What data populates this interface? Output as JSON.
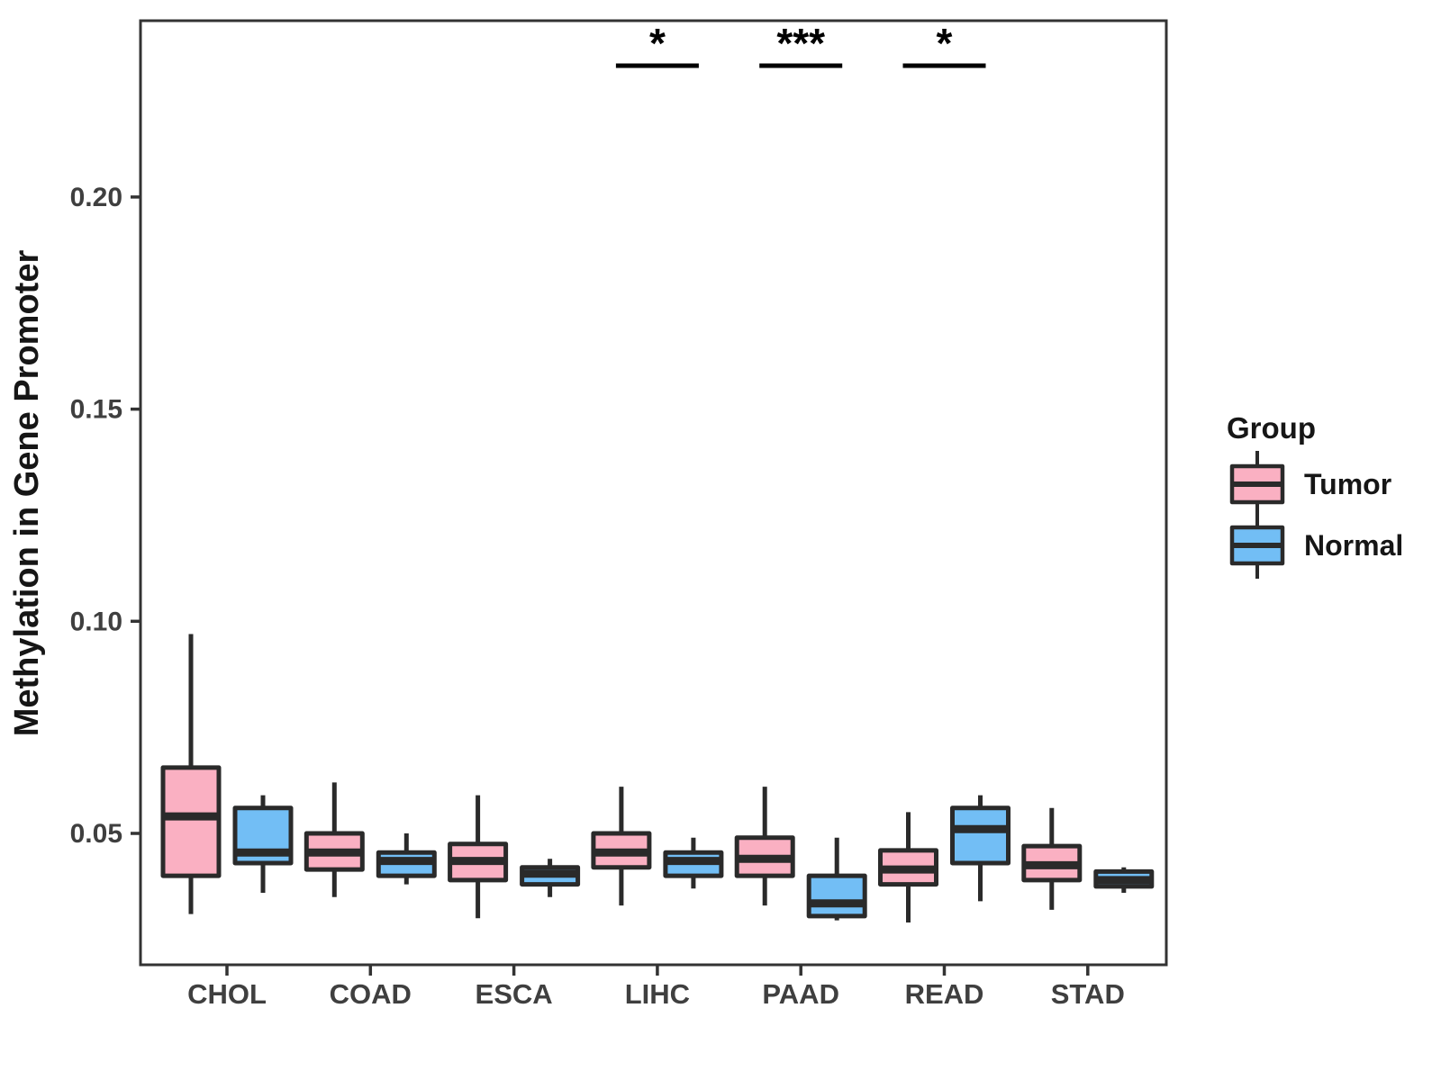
{
  "figure": {
    "background": "#FFFFFF",
    "y_axis_title": "Methylation in Gene Promoter",
    "legend": {
      "title": "Group",
      "items": [
        {
          "name": "tumor",
          "label": "Tumor",
          "color": "#FAB0C2"
        },
        {
          "name": "normal",
          "label": "Normal",
          "color": "#72BEF5"
        }
      ]
    }
  },
  "chart_data": {
    "type": "grouped_boxplot",
    "title": "",
    "xlabel": "",
    "ylabel": "Methylation in Gene Promoter",
    "categories": [
      "CHOL",
      "COAD",
      "ESCA",
      "LIHC",
      "PAAD",
      "READ",
      "STAD"
    ],
    "yticks": [
      0.05,
      0.1,
      0.15,
      0.2
    ],
    "ytick_labels": [
      "0.05",
      "0.10",
      "0.15",
      "0.20"
    ],
    "ylim": [
      0.019,
      0.2415
    ],
    "grid": "off",
    "legend_position": "right",
    "stroke_color": "#2A2A2A",
    "series": [
      {
        "name": "Tumor",
        "color": "#FAB0C2",
        "boxes": [
          {
            "category": "CHOL",
            "whisker_low": 0.031,
            "q1": 0.04,
            "median": 0.054,
            "q3": 0.0655,
            "whisker_high": 0.097
          },
          {
            "category": "COAD",
            "whisker_low": 0.035,
            "q1": 0.0415,
            "median": 0.0455,
            "q3": 0.05,
            "whisker_high": 0.062
          },
          {
            "category": "ESCA",
            "whisker_low": 0.03,
            "q1": 0.039,
            "median": 0.0435,
            "q3": 0.0475,
            "whisker_high": 0.059
          },
          {
            "category": "LIHC",
            "whisker_low": 0.033,
            "q1": 0.042,
            "median": 0.0455,
            "q3": 0.05,
            "whisker_high": 0.061
          },
          {
            "category": "PAAD",
            "whisker_low": 0.033,
            "q1": 0.04,
            "median": 0.044,
            "q3": 0.049,
            "whisker_high": 0.061
          },
          {
            "category": "READ",
            "whisker_low": 0.029,
            "q1": 0.038,
            "median": 0.0415,
            "q3": 0.046,
            "whisker_high": 0.055
          },
          {
            "category": "STAD",
            "whisker_low": 0.032,
            "q1": 0.039,
            "median": 0.0425,
            "q3": 0.047,
            "whisker_high": 0.056
          }
        ]
      },
      {
        "name": "Normal",
        "color": "#72BEF5",
        "boxes": [
          {
            "category": "CHOL",
            "whisker_low": 0.036,
            "q1": 0.043,
            "median": 0.0455,
            "q3": 0.056,
            "whisker_high": 0.059
          },
          {
            "category": "COAD",
            "whisker_low": 0.038,
            "q1": 0.04,
            "median": 0.0435,
            "q3": 0.0455,
            "whisker_high": 0.05
          },
          {
            "category": "ESCA",
            "whisker_low": 0.035,
            "q1": 0.038,
            "median": 0.0405,
            "q3": 0.042,
            "whisker_high": 0.044
          },
          {
            "category": "LIHC",
            "whisker_low": 0.037,
            "q1": 0.04,
            "median": 0.0435,
            "q3": 0.0455,
            "whisker_high": 0.049
          },
          {
            "category": "PAAD",
            "whisker_low": 0.0295,
            "q1": 0.0305,
            "median": 0.0335,
            "q3": 0.04,
            "whisker_high": 0.049
          },
          {
            "category": "READ",
            "whisker_low": 0.034,
            "q1": 0.043,
            "median": 0.051,
            "q3": 0.056,
            "whisker_high": 0.059
          },
          {
            "category": "STAD",
            "whisker_low": 0.036,
            "q1": 0.0375,
            "median": 0.039,
            "q3": 0.041,
            "whisker_high": 0.042
          }
        ]
      }
    ],
    "significance": [
      {
        "category": "LIHC",
        "label": "*"
      },
      {
        "category": "PAAD",
        "label": "***"
      },
      {
        "category": "READ",
        "label": "*"
      }
    ]
  }
}
